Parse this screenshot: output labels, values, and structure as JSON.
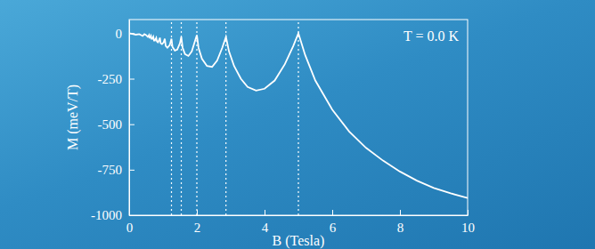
{
  "chart_data": {
    "type": "line",
    "x_label": "B (Tesla)",
    "y_label": "M (meV/T)",
    "annotation": "T = 0.0 K",
    "xlim": [
      0,
      10
    ],
    "ylim": [
      -1000,
      75
    ],
    "xticks": [
      0,
      2,
      4,
      6,
      8,
      10
    ],
    "yticks": [
      0,
      -250,
      -500,
      -750,
      -1000
    ],
    "vlines": [
      1.25,
      1.54,
      2.0,
      2.86,
      5.0
    ],
    "x": [
      0,
      0.2,
      0.3,
      0.4,
      0.45,
      0.5,
      0.55,
      0.588,
      0.6,
      0.62,
      0.645,
      0.66,
      0.69,
      0.714,
      0.735,
      0.76,
      0.8,
      0.82,
      0.85,
      0.88,
      0.909,
      0.93,
      0.97,
      1.02,
      1.053,
      1.08,
      1.13,
      1.2,
      1.25,
      1.28,
      1.35,
      1.42,
      1.5,
      1.54,
      1.58,
      1.65,
      1.75,
      1.85,
      1.95,
      2.0,
      2.05,
      2.15,
      2.3,
      2.45,
      2.6,
      2.75,
      2.86,
      2.95,
      3.1,
      3.3,
      3.5,
      3.75,
      4.0,
      4.3,
      4.6,
      4.85,
      5.0,
      5.2,
      5.5,
      6.0,
      6.5,
      7.0,
      7.5,
      8.0,
      8.5,
      9.0,
      9.5,
      10.0
    ],
    "series": [
      {
        "color": "#ffffff",
        "values": [
          0,
          -8,
          -5,
          -15,
          -5,
          -10,
          -20,
          -10,
          -25,
          -25,
          -15,
          -30,
          -30,
          -20,
          -40,
          -40,
          -25,
          -45,
          -50,
          -40,
          -25,
          -55,
          -60,
          -50,
          -30,
          -70,
          -80,
          -65,
          -30,
          -75,
          -95,
          -90,
          -55,
          -20,
          -80,
          -115,
          -125,
          -100,
          -40,
          -10,
          -80,
          -140,
          -180,
          -185,
          -150,
          -80,
          -20,
          -100,
          -180,
          -250,
          -295,
          -315,
          -305,
          -260,
          -170,
          -70,
          0,
          -120,
          -260,
          -420,
          -540,
          -630,
          -700,
          -760,
          -810,
          -850,
          -880,
          -905
        ]
      }
    ]
  }
}
